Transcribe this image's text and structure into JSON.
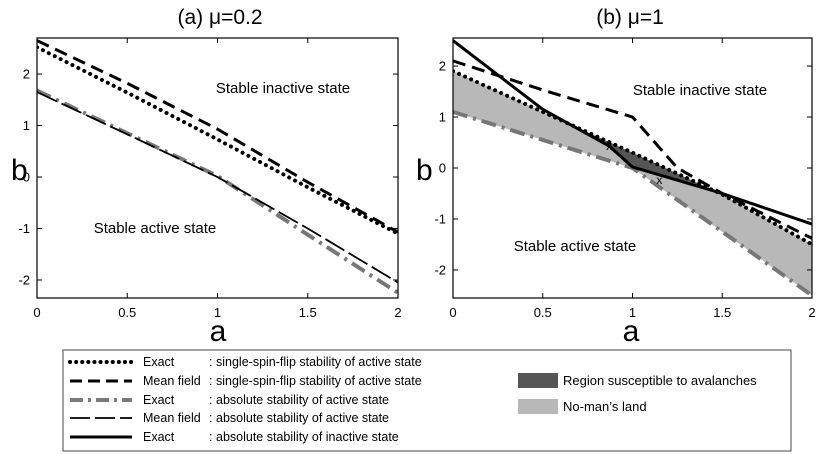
{
  "chart_data": [
    {
      "type": "line",
      "title": "(a) μ=0.2",
      "xlabel": "a",
      "ylabel": "b",
      "xlim": [
        0,
        2
      ],
      "ylim": [
        -2.35,
        2.7
      ],
      "xticks": [
        "0",
        "0.5",
        "1",
        "1.5",
        "2"
      ],
      "yticks": [
        "-2",
        "-1",
        "0",
        "1",
        "2"
      ],
      "region_labels": [
        "Stable inactive state",
        "Stable active state"
      ],
      "series": [
        {
          "name": "Exact : single-spin-flip stability of active state",
          "style": "dotted",
          "x": [
            0,
            0.5,
            1,
            1.5,
            2
          ],
          "y": [
            2.52,
            1.64,
            0.73,
            -0.2,
            -1.1
          ]
        },
        {
          "name": "Mean field : single-spin-flip stability of active state",
          "style": "dashed",
          "x": [
            0,
            0.5,
            1,
            1.5,
            2
          ],
          "y": [
            2.65,
            1.82,
            0.93,
            -0.1,
            -1.07
          ]
        },
        {
          "name": "Exact : absolute stability of active state",
          "style": "dashdot-gray",
          "x": [
            0,
            0.5,
            1,
            1.5,
            2
          ],
          "y": [
            1.68,
            0.85,
            0.02,
            -1.12,
            -2.25
          ]
        },
        {
          "name": "Mean field : absolute stability of active state",
          "style": "longdash",
          "x": [
            0,
            0.5,
            1,
            1.5,
            2
          ],
          "y": [
            1.65,
            0.83,
            0.0,
            -1.0,
            -2.05
          ]
        }
      ]
    },
    {
      "type": "line",
      "title": "(b) μ=1",
      "xlabel": "a",
      "ylabel": "b",
      "xlim": [
        0,
        2
      ],
      "ylim": [
        -2.55,
        2.55
      ],
      "xticks": [
        "0",
        "0.5",
        "1",
        "1.5",
        "2"
      ],
      "yticks": [
        "-2",
        "-1",
        "0",
        "1",
        "2"
      ],
      "region_labels": [
        "Stable inactive state",
        "Stable active state"
      ],
      "markers": [
        {
          "label": "x",
          "x": 0.87,
          "y": 0.43
        },
        {
          "label": "x",
          "x": 1.15,
          "y": -0.24
        }
      ],
      "series": [
        {
          "name": "Exact : single-spin-flip stability of active state",
          "style": "dotted",
          "x": [
            0,
            0.5,
            1,
            1.5,
            2
          ],
          "y": [
            1.9,
            1.1,
            0.3,
            -0.52,
            -1.5
          ]
        },
        {
          "name": "Mean field : single-spin-flip stability of active state",
          "style": "dashed",
          "x": [
            0,
            0.5,
            1,
            1.25,
            1.5,
            2
          ],
          "y": [
            2.1,
            1.53,
            1.0,
            0.0,
            -0.5,
            -1.38
          ]
        },
        {
          "name": "Exact : absolute stability of active state",
          "style": "dashdot-gray",
          "x": [
            0,
            0.5,
            1,
            1.5,
            2
          ],
          "y": [
            1.1,
            0.55,
            0.0,
            -1.25,
            -2.5
          ]
        },
        {
          "name": "Exact : absolute stability of inactive state",
          "style": "solid",
          "x": [
            0,
            0.5,
            0.87,
            1,
            1.5,
            2
          ],
          "y": [
            2.5,
            1.15,
            0.43,
            0.02,
            -0.5,
            -1.1
          ]
        }
      ],
      "shaded_regions": [
        {
          "name": "Region susceptible to avalanches",
          "color": "#555555"
        },
        {
          "name": "No-man's land",
          "color": "#b8b8b8"
        }
      ]
    }
  ],
  "legend": {
    "entries": [
      {
        "method": "Exact",
        "sep": ":",
        "desc": "single-spin-flip stability of active state"
      },
      {
        "method": "Mean field",
        "sep": ":",
        "desc": "single-spin-flip stability of active state"
      },
      {
        "method": "Exact",
        "sep": ":",
        "desc": "absolute stability of active state"
      },
      {
        "method": "Mean field",
        "sep": ":",
        "desc": "absolute stability of active state"
      },
      {
        "method": "Exact",
        "sep": ":",
        "desc": "absolute stability of inactive state"
      }
    ],
    "region_entries": [
      "Region susceptible to avalanches",
      "No-man’s land"
    ]
  },
  "colors": {
    "dark_region": "#555555",
    "light_region": "#b8b8b8",
    "gray_line": "#777777"
  }
}
